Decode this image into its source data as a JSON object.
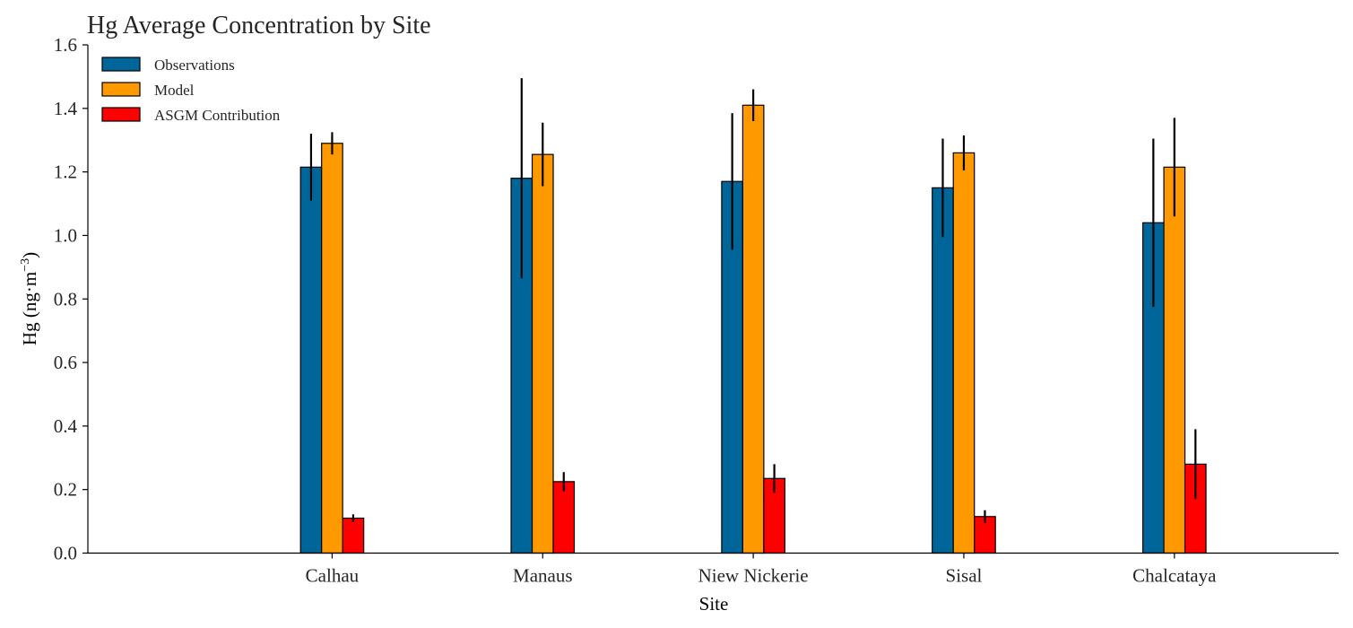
{
  "chart_data": {
    "type": "bar",
    "title": "Hg Average Concentration by Site",
    "xlabel": "Site",
    "ylabel": "Hg (ng·m",
    "ylabel_sup": "−3",
    "ylabel_end": ")",
    "ylim": [
      0,
      1.6
    ],
    "yticks": [
      0.0,
      0.2,
      0.4,
      0.6,
      0.8,
      1.0,
      1.2,
      1.4,
      1.6
    ],
    "ytick_labels": [
      "0.0",
      "0.2",
      "0.4",
      "0.6",
      "0.8",
      "1.0",
      "1.2",
      "1.4",
      "1.6"
    ],
    "categories": [
      "Calhau",
      "Manaus",
      "Niew Nickerie",
      "Sisal",
      "Chalcataya"
    ],
    "x_positions": [
      1,
      2,
      3,
      4,
      5
    ],
    "xlim": [
      -0.16,
      5.78
    ],
    "legend_position": "top-left",
    "grid": false,
    "series": [
      {
        "name": "Observations",
        "color": "#006699",
        "values": [
          1.215,
          1.18,
          1.17,
          1.15,
          1.04
        ],
        "error": [
          0.105,
          0.315,
          0.215,
          0.155,
          0.265
        ]
      },
      {
        "name": "Model",
        "color": "#FF9900",
        "values": [
          1.29,
          1.255,
          1.41,
          1.26,
          1.215
        ],
        "error": [
          0.035,
          0.1,
          0.05,
          0.055,
          0.155
        ]
      },
      {
        "name": "ASGM Contribution",
        "color": "#FF0000",
        "values": [
          0.11,
          0.225,
          0.235,
          0.115,
          0.28
        ],
        "error": [
          0.012,
          0.03,
          0.045,
          0.02,
          0.11
        ]
      }
    ]
  }
}
